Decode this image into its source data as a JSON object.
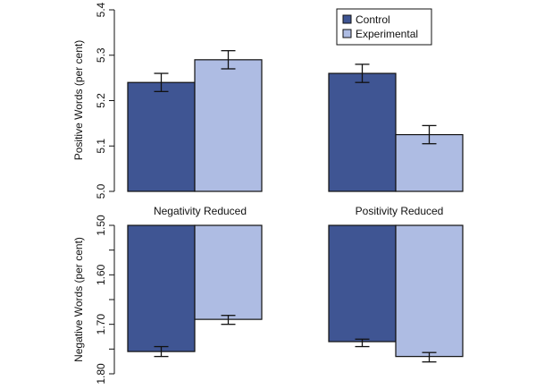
{
  "colors": {
    "control": "#3f5593",
    "experimental": "#aebce3"
  },
  "legend": {
    "placement": "top-right",
    "entries": [
      "Control",
      "Experimental"
    ]
  },
  "chart_data": [
    {
      "type": "bar",
      "ylabel": "Positive Words (per cent)",
      "ylim": [
        5.0,
        5.4
      ],
      "yticks": [
        "5.0",
        "5.1",
        "5.2",
        "5.3",
        "5.4"
      ],
      "categories": [
        "Negativity Reduced",
        "Positivity Reduced"
      ],
      "series": [
        {
          "name": "Control",
          "values": [
            5.24,
            5.26
          ],
          "err_low": [
            5.22,
            5.24
          ],
          "err_high": [
            5.26,
            5.28
          ]
        },
        {
          "name": "Experimental",
          "values": [
            5.29,
            5.125
          ],
          "err_low": [
            5.27,
            5.105
          ],
          "err_high": [
            5.31,
            5.145
          ]
        }
      ]
    },
    {
      "type": "bar",
      "ylabel": "Negative Words (per cent)",
      "ylim": [
        1.5,
        1.8
      ],
      "reversed": true,
      "yticks": [
        "1.50",
        "1.60",
        "1.70",
        "1.80"
      ],
      "minor_ticks": [
        1.55,
        1.65,
        1.75
      ],
      "categories": [
        "Negativity Reduced",
        "Positivity Reduced"
      ],
      "series": [
        {
          "name": "Control",
          "values": [
            1.755,
            1.735
          ],
          "err_low": [
            1.745,
            1.73
          ],
          "err_high": [
            1.765,
            1.745
          ]
        },
        {
          "name": "Experimental",
          "values": [
            1.69,
            1.765
          ],
          "err_low": [
            1.682,
            1.757
          ],
          "err_high": [
            1.7,
            1.776
          ]
        }
      ]
    }
  ]
}
